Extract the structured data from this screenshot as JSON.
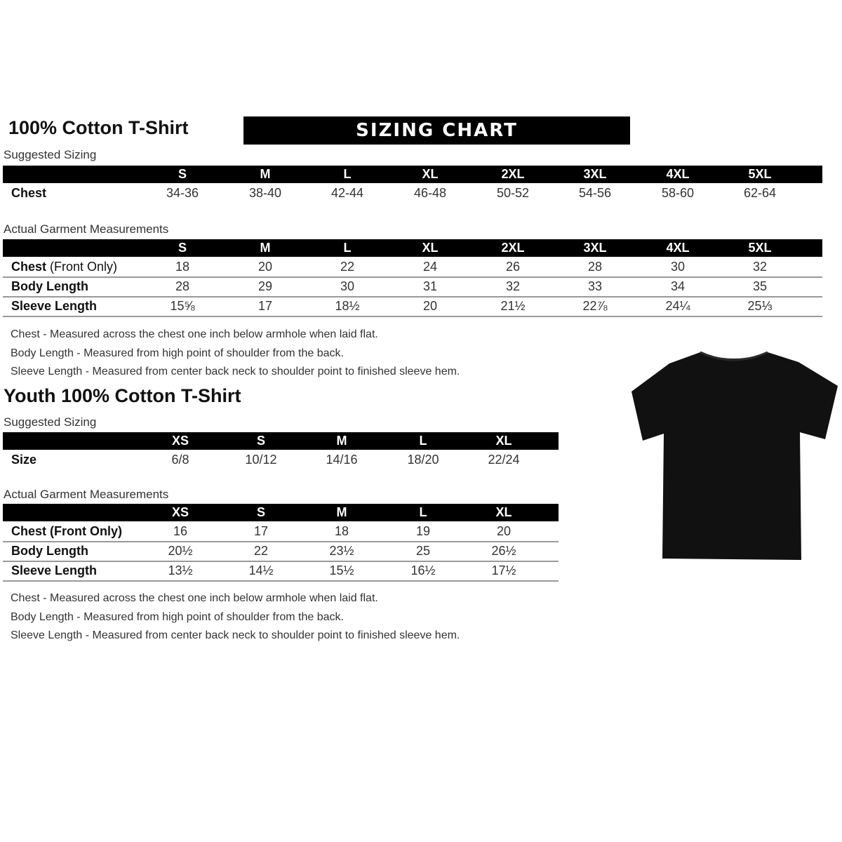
{
  "adult": {
    "title": "100% Cotton T-Shirt",
    "banner": "SIZING CHART",
    "suggested_label": "Suggested Sizing",
    "sizes": [
      "S",
      "M",
      "L",
      "XL",
      "2XL",
      "3XL",
      "4XL",
      "5XL"
    ],
    "suggested_rows": [
      {
        "label": "Chest",
        "values": [
          "34-36",
          "38-40",
          "42-44",
          "46-48",
          "50-52",
          "54-56",
          "58-60",
          "62-64"
        ]
      }
    ],
    "actual_label": "Actual Garment Measurements",
    "actual_rows": [
      {
        "label": "Chest",
        "label_suffix": " (Front Only)",
        "values": [
          "18",
          "20",
          "22",
          "24",
          "26",
          "28",
          "30",
          "32"
        ]
      },
      {
        "label": "Body Length",
        "label_suffix": "",
        "values": [
          "28",
          "29",
          "30",
          "31",
          "32",
          "33",
          "34",
          "35"
        ]
      },
      {
        "label": "Sleeve Length",
        "label_suffix": "",
        "values": [
          "15⅝",
          "17",
          "18½",
          "20",
          "21½",
          "22⅞",
          "24¼",
          "25⅓"
        ]
      }
    ],
    "notes": [
      "Chest - Measured across the chest one inch below armhole when laid flat.",
      "Body Length - Measured from high point of shoulder from the back.",
      "Sleeve Length - Measured from center back neck to shoulder point to finished sleeve hem."
    ]
  },
  "youth": {
    "title": "Youth 100% Cotton T-Shirt",
    "suggested_label": "Suggested Sizing",
    "sizes": [
      "XS",
      "S",
      "M",
      "L",
      "XL"
    ],
    "suggested_rows": [
      {
        "label": "Size",
        "values": [
          "6/8",
          "10/12",
          "14/16",
          "18/20",
          "22/24"
        ]
      }
    ],
    "actual_label": "Actual Garment Measurements",
    "actual_rows": [
      {
        "label": "Chest (Front Only)",
        "label_suffix": "",
        "values": [
          "16",
          "17",
          "18",
          "19",
          "20"
        ]
      },
      {
        "label": "Body Length",
        "label_suffix": "",
        "values": [
          "20½",
          "22",
          "23½",
          "25",
          "26½"
        ]
      },
      {
        "label": "Sleeve Length",
        "label_suffix": "",
        "values": [
          "13½",
          "14½",
          "15½",
          "16½",
          "17½"
        ]
      }
    ],
    "notes": [
      "Chest - Measured across the chest one inch below armhole when laid flat.",
      "Body Length - Measured from high point of shoulder from the back.",
      "Sleeve Length - Measured from center back neck to shoulder point to finished sleeve hem."
    ]
  },
  "image": {
    "icon": "tshirt-icon",
    "color": "#111111"
  }
}
